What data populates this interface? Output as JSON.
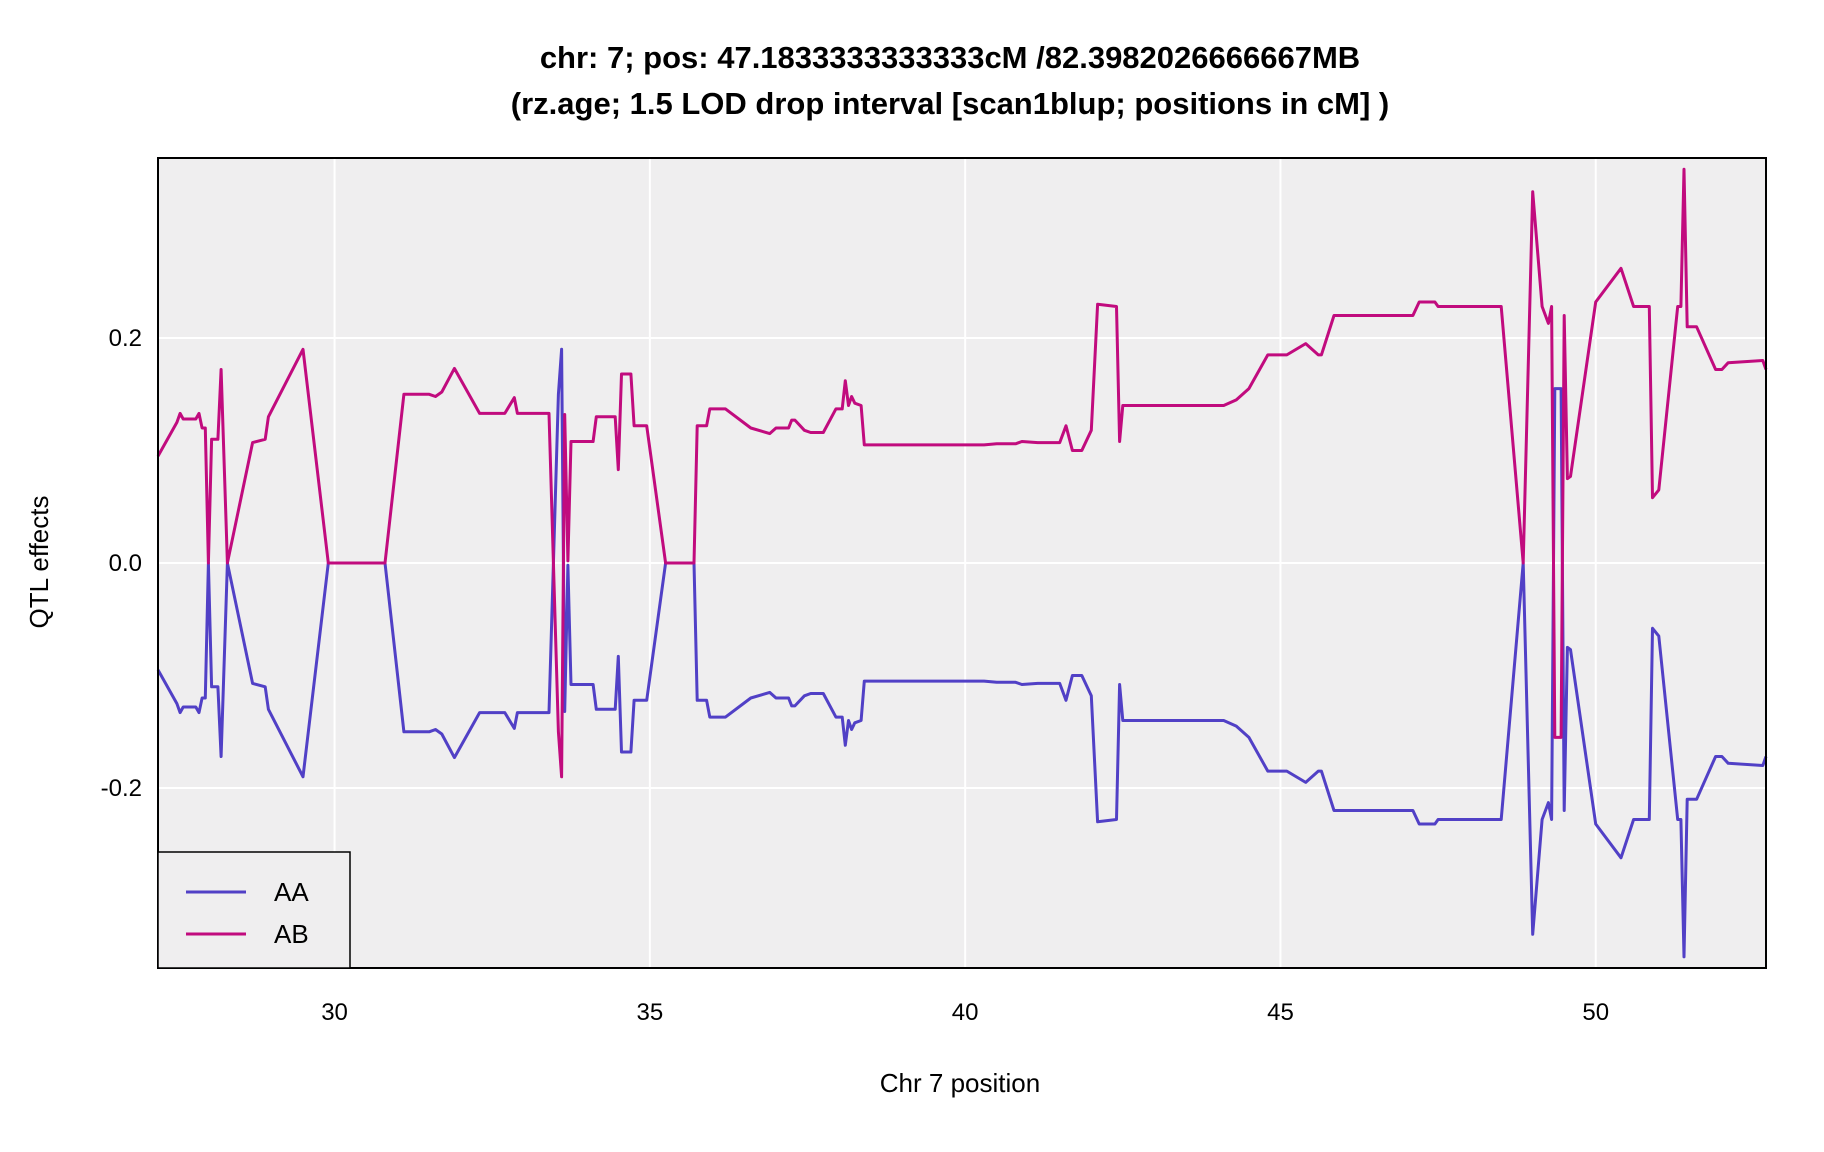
{
  "chart_data": {
    "type": "line",
    "title_line1": "chr: 7; pos: 47.1833333333333cM /82.3982026666667MB",
    "title_line2": "(rz.age; 1.5 LOD drop interval [scan1blup; positions in cM] )",
    "xlabel": "Chr 7 position",
    "ylabel": "QTL effects",
    "xlim": [
      27.2,
      52.7
    ],
    "ylim": [
      -0.36,
      0.36
    ],
    "xticks": [
      30,
      35,
      40,
      45,
      50
    ],
    "xtick_labels": [
      "30",
      "35",
      "40",
      "45",
      "50"
    ],
    "yticks": [
      -0.2,
      0.0,
      0.2
    ],
    "ytick_labels": [
      "-0.2",
      "0.0",
      "0.2"
    ],
    "grid": true,
    "legend_position": "bottom-left",
    "plot_background": "#efeeef",
    "grid_color": "#ffffff",
    "series": [
      {
        "name": "AA",
        "color": "#5140c6",
        "points": [
          [
            27.2,
            -0.095
          ],
          [
            27.5,
            -0.125
          ],
          [
            27.55,
            -0.133
          ],
          [
            27.6,
            -0.128
          ],
          [
            27.8,
            -0.128
          ],
          [
            27.85,
            -0.133
          ],
          [
            27.9,
            -0.12
          ],
          [
            27.95,
            -0.12
          ],
          [
            28.0,
            0.0
          ],
          [
            28.05,
            -0.11
          ],
          [
            28.15,
            -0.11
          ],
          [
            28.2,
            -0.172
          ],
          [
            28.3,
            0.0
          ],
          [
            28.7,
            -0.107
          ],
          [
            28.9,
            -0.11
          ],
          [
            28.95,
            -0.13
          ],
          [
            29.5,
            -0.19
          ],
          [
            29.9,
            0.0
          ],
          [
            30.8,
            0.0
          ],
          [
            31.1,
            -0.15
          ],
          [
            31.5,
            -0.15
          ],
          [
            31.6,
            -0.148
          ],
          [
            31.7,
            -0.152
          ],
          [
            31.9,
            -0.173
          ],
          [
            32.3,
            -0.133
          ],
          [
            32.7,
            -0.133
          ],
          [
            32.85,
            -0.147
          ],
          [
            32.9,
            -0.133
          ],
          [
            33.4,
            -0.133
          ],
          [
            33.55,
            0.15
          ],
          [
            33.6,
            0.19
          ],
          [
            33.65,
            -0.132
          ],
          [
            33.7,
            -0.002
          ],
          [
            33.75,
            -0.108
          ],
          [
            34.1,
            -0.108
          ],
          [
            34.15,
            -0.13
          ],
          [
            34.45,
            -0.13
          ],
          [
            34.5,
            -0.083
          ],
          [
            34.55,
            -0.168
          ],
          [
            34.7,
            -0.168
          ],
          [
            34.75,
            -0.122
          ],
          [
            34.95,
            -0.122
          ],
          [
            35.25,
            0.0
          ],
          [
            35.7,
            0.0
          ],
          [
            35.75,
            -0.122
          ],
          [
            35.9,
            -0.122
          ],
          [
            35.95,
            -0.137
          ],
          [
            36.2,
            -0.137
          ],
          [
            36.6,
            -0.12
          ],
          [
            36.9,
            -0.115
          ],
          [
            37.0,
            -0.12
          ],
          [
            37.2,
            -0.12
          ],
          [
            37.25,
            -0.127
          ],
          [
            37.3,
            -0.127
          ],
          [
            37.45,
            -0.118
          ],
          [
            37.55,
            -0.116
          ],
          [
            37.75,
            -0.116
          ],
          [
            37.95,
            -0.137
          ],
          [
            38.05,
            -0.137
          ],
          [
            38.1,
            -0.162
          ],
          [
            38.15,
            -0.14
          ],
          [
            38.2,
            -0.148
          ],
          [
            38.25,
            -0.142
          ],
          [
            38.35,
            -0.14
          ],
          [
            38.4,
            -0.105
          ],
          [
            40.3,
            -0.105
          ],
          [
            40.5,
            -0.106
          ],
          [
            40.8,
            -0.106
          ],
          [
            40.9,
            -0.108
          ],
          [
            41.15,
            -0.107
          ],
          [
            41.5,
            -0.107
          ],
          [
            41.6,
            -0.122
          ],
          [
            41.7,
            -0.1
          ],
          [
            41.85,
            -0.1
          ],
          [
            42.0,
            -0.118
          ],
          [
            42.1,
            -0.23
          ],
          [
            42.4,
            -0.228
          ],
          [
            42.45,
            -0.108
          ],
          [
            42.5,
            -0.14
          ],
          [
            44.1,
            -0.14
          ],
          [
            44.3,
            -0.145
          ],
          [
            44.5,
            -0.155
          ],
          [
            44.8,
            -0.185
          ],
          [
            45.1,
            -0.185
          ],
          [
            45.4,
            -0.195
          ],
          [
            45.6,
            -0.185
          ],
          [
            45.65,
            -0.185
          ],
          [
            45.85,
            -0.22
          ],
          [
            47.1,
            -0.22
          ],
          [
            47.2,
            -0.232
          ],
          [
            47.45,
            -0.232
          ],
          [
            47.5,
            -0.228
          ],
          [
            48.5,
            -0.228
          ],
          [
            48.85,
            0.0
          ],
          [
            49.0,
            -0.33
          ],
          [
            49.15,
            -0.228
          ],
          [
            49.25,
            -0.213
          ],
          [
            49.3,
            -0.228
          ],
          [
            49.35,
            0.155
          ],
          [
            49.45,
            0.155
          ],
          [
            49.5,
            -0.22
          ],
          [
            49.55,
            -0.075
          ],
          [
            49.6,
            -0.077
          ],
          [
            50.0,
            -0.232
          ],
          [
            50.4,
            -0.262
          ],
          [
            50.6,
            -0.228
          ],
          [
            50.85,
            -0.228
          ],
          [
            50.9,
            -0.058
          ],
          [
            51.0,
            -0.065
          ],
          [
            51.3,
            -0.228
          ],
          [
            51.35,
            -0.228
          ],
          [
            51.4,
            -0.35
          ],
          [
            51.45,
            -0.21
          ],
          [
            51.6,
            -0.21
          ],
          [
            51.9,
            -0.172
          ],
          [
            52.0,
            -0.172
          ],
          [
            52.1,
            -0.178
          ],
          [
            52.65,
            -0.18
          ],
          [
            52.7,
            -0.172
          ]
        ]
      },
      {
        "name": "AB",
        "color": "#c10b7e",
        "points": [
          [
            27.2,
            0.095
          ],
          [
            27.5,
            0.125
          ],
          [
            27.55,
            0.133
          ],
          [
            27.6,
            0.128
          ],
          [
            27.8,
            0.128
          ],
          [
            27.85,
            0.133
          ],
          [
            27.9,
            0.12
          ],
          [
            27.95,
            0.12
          ],
          [
            28.0,
            0.0
          ],
          [
            28.05,
            0.11
          ],
          [
            28.15,
            0.11
          ],
          [
            28.2,
            0.172
          ],
          [
            28.3,
            0.0
          ],
          [
            28.7,
            0.107
          ],
          [
            28.9,
            0.11
          ],
          [
            28.95,
            0.13
          ],
          [
            29.5,
            0.19
          ],
          [
            29.9,
            0.0
          ],
          [
            30.8,
            0.0
          ],
          [
            31.1,
            0.15
          ],
          [
            31.5,
            0.15
          ],
          [
            31.6,
            0.148
          ],
          [
            31.7,
            0.152
          ],
          [
            31.9,
            0.173
          ],
          [
            32.3,
            0.133
          ],
          [
            32.7,
            0.133
          ],
          [
            32.85,
            0.147
          ],
          [
            32.9,
            0.133
          ],
          [
            33.4,
            0.133
          ],
          [
            33.55,
            -0.15
          ],
          [
            33.6,
            -0.19
          ],
          [
            33.65,
            0.132
          ],
          [
            33.7,
            0.002
          ],
          [
            33.75,
            0.108
          ],
          [
            34.1,
            0.108
          ],
          [
            34.15,
            0.13
          ],
          [
            34.45,
            0.13
          ],
          [
            34.5,
            0.083
          ],
          [
            34.55,
            0.168
          ],
          [
            34.7,
            0.168
          ],
          [
            34.75,
            0.122
          ],
          [
            34.95,
            0.122
          ],
          [
            35.25,
            0.0
          ],
          [
            35.7,
            0.0
          ],
          [
            35.75,
            0.122
          ],
          [
            35.9,
            0.122
          ],
          [
            35.95,
            0.137
          ],
          [
            36.2,
            0.137
          ],
          [
            36.6,
            0.12
          ],
          [
            36.9,
            0.115
          ],
          [
            37.0,
            0.12
          ],
          [
            37.2,
            0.12
          ],
          [
            37.25,
            0.127
          ],
          [
            37.3,
            0.127
          ],
          [
            37.45,
            0.118
          ],
          [
            37.55,
            0.116
          ],
          [
            37.75,
            0.116
          ],
          [
            37.95,
            0.137
          ],
          [
            38.05,
            0.137
          ],
          [
            38.1,
            0.162
          ],
          [
            38.15,
            0.14
          ],
          [
            38.2,
            0.148
          ],
          [
            38.25,
            0.142
          ],
          [
            38.35,
            0.14
          ],
          [
            38.4,
            0.105
          ],
          [
            40.3,
            0.105
          ],
          [
            40.5,
            0.106
          ],
          [
            40.8,
            0.106
          ],
          [
            40.9,
            0.108
          ],
          [
            41.15,
            0.107
          ],
          [
            41.5,
            0.107
          ],
          [
            41.6,
            0.122
          ],
          [
            41.7,
            0.1
          ],
          [
            41.85,
            0.1
          ],
          [
            42.0,
            0.118
          ],
          [
            42.1,
            0.23
          ],
          [
            42.4,
            0.228
          ],
          [
            42.45,
            0.108
          ],
          [
            42.5,
            0.14
          ],
          [
            44.1,
            0.14
          ],
          [
            44.3,
            0.145
          ],
          [
            44.5,
            0.155
          ],
          [
            44.8,
            0.185
          ],
          [
            45.1,
            0.185
          ],
          [
            45.4,
            0.195
          ],
          [
            45.6,
            0.185
          ],
          [
            45.65,
            0.185
          ],
          [
            45.85,
            0.22
          ],
          [
            47.1,
            0.22
          ],
          [
            47.2,
            0.232
          ],
          [
            47.45,
            0.232
          ],
          [
            47.5,
            0.228
          ],
          [
            48.5,
            0.228
          ],
          [
            48.85,
            0.0
          ],
          [
            49.0,
            0.33
          ],
          [
            49.15,
            0.228
          ],
          [
            49.25,
            0.213
          ],
          [
            49.3,
            0.228
          ],
          [
            49.35,
            -0.155
          ],
          [
            49.45,
            -0.155
          ],
          [
            49.5,
            0.22
          ],
          [
            49.55,
            0.075
          ],
          [
            49.6,
            0.077
          ],
          [
            50.0,
            0.232
          ],
          [
            50.4,
            0.262
          ],
          [
            50.6,
            0.228
          ],
          [
            50.85,
            0.228
          ],
          [
            50.9,
            0.058
          ],
          [
            51.0,
            0.065
          ],
          [
            51.3,
            0.228
          ],
          [
            51.35,
            0.228
          ],
          [
            51.4,
            0.35
          ],
          [
            51.45,
            0.21
          ],
          [
            51.6,
            0.21
          ],
          [
            51.9,
            0.172
          ],
          [
            52.0,
            0.172
          ],
          [
            52.1,
            0.178
          ],
          [
            52.65,
            0.18
          ],
          [
            52.7,
            0.172
          ]
        ]
      }
    ]
  }
}
